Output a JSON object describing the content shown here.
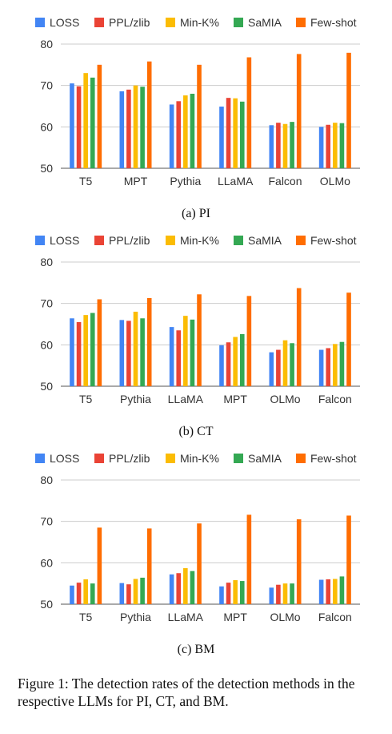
{
  "colors": {
    "LOSS": "#4285f4",
    "PPL/zlib": "#ea4335",
    "Min-K%": "#fbbc04",
    "SaMIA": "#34a853",
    "Few-shot": "#ff6d01"
  },
  "chart_data": [
    {
      "type": "bar",
      "caption": "(a) PI",
      "categories": [
        "T5",
        "MPT",
        "Pythia",
        "LLaMA",
        "Falcon",
        "OLMo"
      ],
      "ylim": [
        50,
        80
      ],
      "yticks": [
        50,
        60,
        70,
        80
      ],
      "grid": true,
      "legend": "top",
      "series": [
        {
          "name": "LOSS",
          "values": [
            70.5,
            68.6,
            65.4,
            64.9,
            60.4,
            60.0
          ]
        },
        {
          "name": "PPL/zlib",
          "values": [
            69.8,
            69.0,
            66.2,
            67.0,
            61.0,
            60.5
          ]
        },
        {
          "name": "Min-K%",
          "values": [
            73.0,
            70.0,
            67.6,
            66.9,
            60.7,
            61.0
          ]
        },
        {
          "name": "SaMIA",
          "values": [
            71.9,
            69.7,
            68.0,
            66.1,
            61.2,
            60.9
          ]
        },
        {
          "name": "Few-shot",
          "values": [
            75.0,
            75.8,
            75.0,
            76.8,
            77.6,
            77.9
          ]
        }
      ]
    },
    {
      "type": "bar",
      "caption": "(b) CT",
      "categories": [
        "T5",
        "Pythia",
        "LLaMA",
        "MPT",
        "OLMo",
        "Falcon"
      ],
      "ylim": [
        50,
        80
      ],
      "yticks": [
        50,
        60,
        70,
        80
      ],
      "grid": true,
      "legend": "top",
      "series": [
        {
          "name": "LOSS",
          "values": [
            66.4,
            66.0,
            64.3,
            59.9,
            58.2,
            58.8
          ]
        },
        {
          "name": "PPL/zlib",
          "values": [
            65.5,
            65.8,
            63.5,
            60.6,
            58.8,
            59.2
          ]
        },
        {
          "name": "Min-K%",
          "values": [
            67.2,
            68.0,
            67.0,
            61.9,
            61.1,
            60.2
          ]
        },
        {
          "name": "SaMIA",
          "values": [
            67.7,
            66.4,
            66.1,
            62.6,
            60.4,
            60.7
          ]
        },
        {
          "name": "Few-shot",
          "values": [
            71.0,
            71.3,
            72.2,
            71.8,
            73.7,
            72.6
          ]
        }
      ]
    },
    {
      "type": "bar",
      "caption": "(c) BM",
      "categories": [
        "T5",
        "Pythia",
        "LLaMA",
        "MPT",
        "OLMo",
        "Falcon"
      ],
      "ylim": [
        50,
        80
      ],
      "yticks": [
        50,
        60,
        70,
        80
      ],
      "grid": true,
      "legend": "top",
      "series": [
        {
          "name": "LOSS",
          "values": [
            54.5,
            55.1,
            57.2,
            54.3,
            54.0,
            55.9
          ]
        },
        {
          "name": "PPL/zlib",
          "values": [
            55.2,
            54.8,
            57.5,
            55.2,
            54.7,
            56.0
          ]
        },
        {
          "name": "Min-K%",
          "values": [
            56.0,
            56.1,
            58.7,
            55.8,
            55.0,
            56.1
          ]
        },
        {
          "name": "SaMIA",
          "values": [
            55.0,
            56.4,
            58.0,
            55.6,
            55.0,
            56.7
          ]
        },
        {
          "name": "Few-shot",
          "values": [
            68.5,
            68.3,
            69.5,
            71.6,
            70.5,
            71.4
          ]
        }
      ]
    }
  ],
  "figure_caption": "Figure 1: The detection rates of the detection methods in the respective LLMs for PI, CT, and BM."
}
